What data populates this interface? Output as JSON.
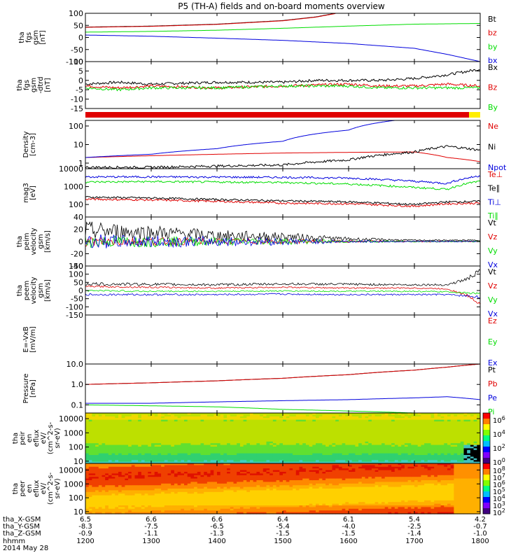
{
  "title": "P5 (TH-A) fields and on-board moments overview",
  "colors": {
    "black": "#000000",
    "red": "#e00000",
    "green": "#00dd00",
    "blue": "#0000dd",
    "yellow": "#ffee00"
  },
  "chart_data": [
    {
      "type": "line",
      "panel": "fgs-btotal",
      "ylabel_lines": [
        "tha",
        "fgs",
        "gsm",
        "[nT]"
      ],
      "ylim": [
        -100,
        100
      ],
      "yticks": [
        "100",
        "50",
        "0",
        "-50",
        "-100"
      ],
      "series": [
        {
          "name": "Bt",
          "color": "black",
          "x": [
            12.0,
            13.0,
            14.0,
            15.0,
            15.5,
            15.8
          ],
          "y": [
            43,
            47,
            55,
            70,
            85,
            100
          ]
        },
        {
          "name": "bz",
          "color": "red",
          "x": [
            12.0,
            13.0,
            14.0,
            15.0,
            15.5,
            15.8
          ],
          "y": [
            42,
            46,
            54,
            69,
            84,
            99
          ]
        },
        {
          "name": "by",
          "color": "green",
          "x": [
            12.0,
            13.0,
            14.0,
            15.0,
            16.0,
            17.0,
            18.0
          ],
          "y": [
            22,
            25,
            30,
            38,
            47,
            55,
            58
          ]
        },
        {
          "name": "bx",
          "color": "blue",
          "x": [
            12.0,
            13.0,
            14.0,
            15.0,
            16.0,
            17.0,
            17.5,
            18.0
          ],
          "y": [
            10,
            5,
            -3,
            -12,
            -25,
            -45,
            -70,
            -100
          ]
        }
      ]
    },
    {
      "type": "line",
      "panel": "fgs-detrended",
      "ylabel_lines": [
        "tha",
        "fgs",
        "gsm",
        "-dtrd",
        "[nT]"
      ],
      "ylim": [
        -15,
        10
      ],
      "yticks": [
        "10",
        "5",
        "0",
        "-5",
        "-10",
        "-15"
      ],
      "series": [
        {
          "name": "Bx",
          "color": "black",
          "x": [
            12.0,
            12.5,
            13.0,
            14.0,
            15.0,
            15.5,
            16.0,
            16.5,
            17.0,
            17.5,
            18.0
          ],
          "y": [
            -2,
            -1,
            -2,
            -1,
            -1,
            0,
            0,
            0,
            1,
            3,
            6
          ]
        },
        {
          "name": "Bz",
          "color": "red",
          "x": [
            12.0,
            12.5,
            13.0,
            14.0,
            15.0,
            16.0,
            16.5,
            17.0,
            17.5,
            18.0
          ],
          "y": [
            -3,
            -4,
            -3,
            -4,
            -3,
            -2,
            -3,
            -3,
            -2,
            -3
          ]
        },
        {
          "name": "By",
          "color": "green",
          "x": [
            12.0,
            12.5,
            13.0,
            14.0,
            15.0,
            16.0,
            16.5,
            17.0,
            17.5,
            18.0
          ],
          "y": [
            -4,
            -5,
            -4,
            -4,
            -3,
            -3,
            -4,
            -4,
            -4,
            -4
          ]
        }
      ]
    },
    {
      "type": "bar",
      "panel": "mode-bar",
      "segments": [
        {
          "from": 12.0,
          "to": 17.83,
          "color": "red"
        },
        {
          "from": 17.83,
          "to": 18.0,
          "color": "yellow"
        }
      ]
    },
    {
      "type": "line",
      "panel": "density",
      "yscale": "log",
      "ylabel_lines": [
        "Density",
        "[cm-3]"
      ],
      "ylim": [
        0.5,
        200
      ],
      "yticks": [
        "100",
        "10",
        "1"
      ],
      "series": [
        {
          "name": "Ne",
          "color": "red",
          "x": [
            12.0,
            13.0,
            14.0,
            15.0,
            16.0,
            17.0,
            17.5,
            18.0
          ],
          "y": [
            2.0,
            2.5,
            3.0,
            3.5,
            3.8,
            4.0,
            2.0,
            1.2
          ]
        },
        {
          "name": "Ni",
          "color": "black",
          "x": [
            12.0,
            13.0,
            14.0,
            15.0,
            16.0,
            17.0,
            17.5,
            18.0
          ],
          "y": [
            0.6,
            0.6,
            0.7,
            0.8,
            1.5,
            4.0,
            8.0,
            5.0
          ]
        },
        {
          "name": "Npot",
          "color": "blue",
          "x": [
            12.0,
            13.0,
            14.0,
            15.0,
            16.0,
            16.7
          ],
          "y": [
            2.0,
            3.0,
            6.0,
            15.0,
            60.0,
            200.0
          ]
        }
      ]
    },
    {
      "type": "line",
      "panel": "temperature",
      "yscale": "log",
      "ylabel_lines": [
        "mag3",
        "[eV]"
      ],
      "ylim": [
        20,
        10000
      ],
      "yticks": [
        "10000",
        "1000",
        "100"
      ],
      "series": [
        {
          "name": "Te⊥",
          "color": "red",
          "x": [
            12.0,
            13.0,
            14.0,
            15.0,
            16.0,
            17.0,
            17.5,
            18.0
          ],
          "y": [
            200,
            180,
            150,
            120,
            110,
            80,
            110,
            120
          ]
        },
        {
          "name": "Te∥",
          "color": "black",
          "x": [
            12.0,
            13.0,
            14.0,
            15.0,
            16.0,
            17.0,
            17.5,
            18.0
          ],
          "y": [
            260,
            230,
            190,
            160,
            140,
            100,
            140,
            150
          ]
        },
        {
          "name": "Ti⊥",
          "color": "blue",
          "x": [
            12.0,
            13.0,
            14.0,
            15.0,
            16.0,
            17.0,
            17.5,
            18.0
          ],
          "y": [
            3500,
            3500,
            3400,
            3300,
            3000,
            2000,
            1500,
            4000
          ]
        },
        {
          "name": "Ti∥",
          "color": "green",
          "x": [
            12.0,
            13.0,
            14.0,
            15.0,
            16.0,
            17.0,
            17.5,
            18.0
          ],
          "y": [
            1800,
            1900,
            1800,
            1700,
            1400,
            900,
            700,
            2000
          ]
        }
      ]
    },
    {
      "type": "line",
      "panel": "peim-velocity",
      "ylabel_lines": [
        "tha",
        "peim",
        "velocity",
        "gsm",
        "[km/s]"
      ],
      "ylim": [
        -40,
        40
      ],
      "yticks": [
        "40",
        "20",
        "0",
        "-20",
        "-40"
      ],
      "series": [
        {
          "name": "Vt",
          "color": "black",
          "x": [
            12.0,
            13.0,
            14.0,
            15.0,
            16.0,
            17.0,
            18.0
          ],
          "y": [
            18,
            15,
            10,
            8,
            4,
            2,
            2
          ],
          "noise": [
            15,
            12,
            9,
            7,
            3,
            1,
            1
          ]
        },
        {
          "name": "Vz",
          "color": "red",
          "x": [
            12.0,
            13.0,
            14.0,
            15.0,
            16.0,
            17.0,
            18.0
          ],
          "y": [
            0,
            0,
            0,
            0,
            0,
            0,
            0
          ],
          "noise": [
            8,
            7,
            5,
            4,
            2,
            1,
            1
          ]
        },
        {
          "name": "Vy",
          "color": "green",
          "x": [
            12.0,
            13.0,
            14.0,
            15.0,
            16.0,
            17.0,
            18.0
          ],
          "y": [
            0,
            0,
            0,
            0,
            0,
            0,
            0
          ],
          "noise": [
            10,
            9,
            7,
            5,
            2,
            1,
            1
          ]
        },
        {
          "name": "Vx",
          "color": "blue",
          "x": [
            12.0,
            13.0,
            14.0,
            15.0,
            16.0,
            17.0,
            18.0
          ],
          "y": [
            0,
            0,
            0,
            0,
            0,
            0,
            0
          ],
          "noise": [
            12,
            10,
            8,
            6,
            2,
            1,
            1
          ]
        }
      ]
    },
    {
      "type": "line",
      "panel": "peem-velocity",
      "ylabel_lines": [
        "tha",
        "peem",
        "velocity",
        "gsm",
        "[km/s]"
      ],
      "ylim": [
        -150,
        150
      ],
      "yticks": [
        "150",
        "100",
        "50",
        "0",
        "-50",
        "-100",
        "-150"
      ],
      "series": [
        {
          "name": "Vt",
          "color": "black",
          "x": [
            12.0,
            13.0,
            14.0,
            15.0,
            16.0,
            17.0,
            17.5,
            17.8,
            18.0
          ],
          "y": [
            40,
            38,
            35,
            40,
            38,
            35,
            35,
            70,
            120
          ],
          "noise": [
            10,
            8,
            8,
            7,
            7,
            6,
            6,
            12,
            15
          ]
        },
        {
          "name": "Vz",
          "color": "red",
          "x": [
            12.0,
            13.0,
            14.0,
            15.0,
            16.0,
            17.0,
            17.5,
            17.8,
            18.0
          ],
          "y": [
            25,
            20,
            15,
            20,
            15,
            15,
            10,
            -30,
            -80
          ],
          "noise": [
            5,
            5,
            4,
            4,
            4,
            4,
            4,
            8,
            10
          ]
        },
        {
          "name": "Vy",
          "color": "green",
          "x": [
            12.0,
            13.0,
            14.0,
            15.0,
            16.0,
            17.0,
            17.5,
            18.0
          ],
          "y": [
            0,
            -5,
            -5,
            -3,
            -5,
            -5,
            -8,
            -20
          ],
          "noise": [
            5,
            5,
            4,
            4,
            4,
            4,
            4,
            6
          ]
        },
        {
          "name": "Vx",
          "color": "blue",
          "x": [
            12.0,
            13.0,
            14.0,
            15.0,
            16.0,
            17.0,
            17.5,
            18.0
          ],
          "y": [
            -25,
            -25,
            -25,
            -22,
            -25,
            -25,
            -25,
            -40
          ],
          "noise": [
            6,
            6,
            5,
            5,
            5,
            5,
            5,
            8
          ]
        }
      ]
    },
    {
      "type": "line",
      "panel": "efield",
      "ylabel_lines": [
        "E=-VxB",
        "[mV/m]"
      ],
      "ylim": [
        0,
        1
      ],
      "yticks": [],
      "series": [
        {
          "name": "Ez",
          "color": "red",
          "x": [],
          "y": []
        },
        {
          "name": "Ey",
          "color": "green",
          "x": [],
          "y": []
        },
        {
          "name": "Ex",
          "color": "blue",
          "x": [],
          "y": []
        }
      ]
    },
    {
      "type": "line",
      "panel": "pressure",
      "yscale": "log",
      "ylabel_lines": [
        "Pressure",
        "[nPa]"
      ],
      "ylim": [
        0.04,
        10
      ],
      "yticks": [
        "10.0",
        "1.0",
        "0.1"
      ],
      "series": [
        {
          "name": "Pt",
          "color": "black",
          "x": [
            12.0,
            13.0,
            14.0,
            15.0,
            16.0,
            17.0,
            17.5,
            18.0
          ],
          "y": [
            1.0,
            1.2,
            1.5,
            2.0,
            3.0,
            5.0,
            7.0,
            10.0
          ]
        },
        {
          "name": "Pb",
          "color": "red",
          "x": [
            12.0,
            13.0,
            14.0,
            15.0,
            16.0,
            17.0,
            17.5,
            18.0
          ],
          "y": [
            1.0,
            1.2,
            1.5,
            2.0,
            3.0,
            5.0,
            7.0,
            10.0
          ]
        },
        {
          "name": "Pe",
          "color": "blue",
          "x": [
            12.0,
            13.0,
            14.0,
            15.0,
            16.0,
            17.0,
            17.5,
            18.0
          ],
          "y": [
            0.12,
            0.12,
            0.14,
            0.16,
            0.18,
            0.22,
            0.25,
            0.18
          ]
        },
        {
          "name": "Pi",
          "color": "green",
          "x": [
            12.0,
            13.0,
            14.0,
            15.0,
            16.0,
            17.0,
            17.5,
            18.0
          ],
          "y": [
            0.1,
            0.09,
            0.08,
            0.06,
            0.05,
            0.04,
            0.04,
            0.04
          ]
        }
      ]
    },
    {
      "type": "heatmap",
      "panel": "peir-en-eflux",
      "yscale": "log",
      "ylabel_lines": [
        "tha",
        "peir",
        "en",
        "eflux",
        "eV/",
        "(cm^2-s-",
        "sr-eV)"
      ],
      "ylim": [
        7,
        25000
      ],
      "yticks": [
        "10000",
        "1000",
        "100",
        "10"
      ],
      "colorbar_ticks": [
        "10^6",
        "10^4",
        "10^2",
        "10^0"
      ]
    },
    {
      "type": "heatmap",
      "panel": "peer-en-eflux",
      "yscale": "log",
      "ylabel_lines": [
        "tha",
        "peer",
        "en",
        "eflux",
        "eV/",
        "(cm^2-s-",
        "sr-eV)"
      ],
      "ylim": [
        7,
        30000
      ],
      "yticks": [
        "10000",
        "1000",
        "100",
        "10"
      ],
      "colorbar_ticks": [
        "10^8",
        "10^7",
        "10^6",
        "10^5",
        "10^4",
        "10^3",
        "10^2"
      ]
    }
  ],
  "ephemeris": {
    "rows": [
      {
        "label": "tha_X-GSM",
        "values": [
          "6.5",
          "6.6",
          "6.6",
          "6.4",
          "6.1",
          "5.4",
          "4.2"
        ]
      },
      {
        "label": "tha_Y-GSM",
        "values": [
          "-8.3",
          "-7.5",
          "-6.5",
          "-5.4",
          "-4.0",
          "-2.5",
          "-0.7"
        ]
      },
      {
        "label": "tha_Z-GSM",
        "values": [
          "-0.9",
          "-1.1",
          "-1.3",
          "-1.5",
          "-1.5",
          "-1.4",
          "-1.0"
        ]
      },
      {
        "label": "hhmm",
        "values": [
          "1200",
          "1300",
          "1400",
          "1500",
          "1600",
          "1700",
          "1800"
        ]
      }
    ],
    "date": "2014 May 28"
  }
}
